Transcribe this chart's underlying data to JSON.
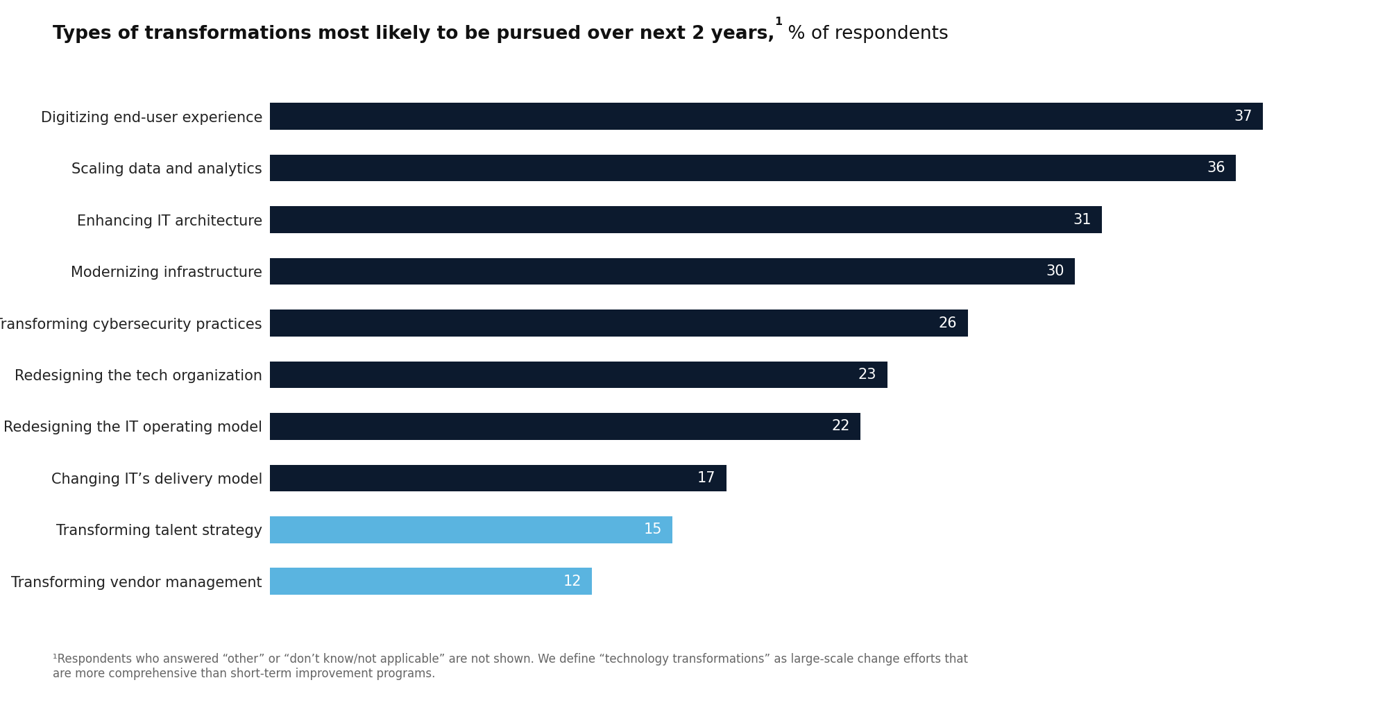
{
  "title_bold": "Types of transformations most likely to be pursued over next 2 years,",
  "title_superscript": "1",
  "title_normal": " % of respondents",
  "categories": [
    "Digitizing end-user experience",
    "Scaling data and analytics",
    "Enhancing IT architecture",
    "Modernizing infrastructure",
    "Transforming cybersecurity practices",
    "Redesigning the tech organization",
    "Redesigning the IT operating model",
    "Changing IT’s delivery model",
    "Transforming talent strategy",
    "Transforming vendor management"
  ],
  "values": [
    37,
    36,
    31,
    30,
    26,
    23,
    22,
    17,
    15,
    12
  ],
  "bar_colors": [
    "#0c1a2e",
    "#0c1a2e",
    "#0c1a2e",
    "#0c1a2e",
    "#0c1a2e",
    "#0c1a2e",
    "#0c1a2e",
    "#0c1a2e",
    "#5ab4e0",
    "#5ab4e0"
  ],
  "value_label_color": "#ffffff",
  "background_color": "#ffffff",
  "footnote": "¹Respondents who answered “other” or “don’t know/not applicable” are not shown. We define “technology transformations” as large-scale change efforts that\nare more comprehensive than short-term improvement programs.",
  "xlim": [
    0,
    40
  ],
  "bar_height": 0.52,
  "title_fontsize": 19,
  "value_fontsize": 15,
  "footnote_fontsize": 12,
  "category_fontsize": 15
}
